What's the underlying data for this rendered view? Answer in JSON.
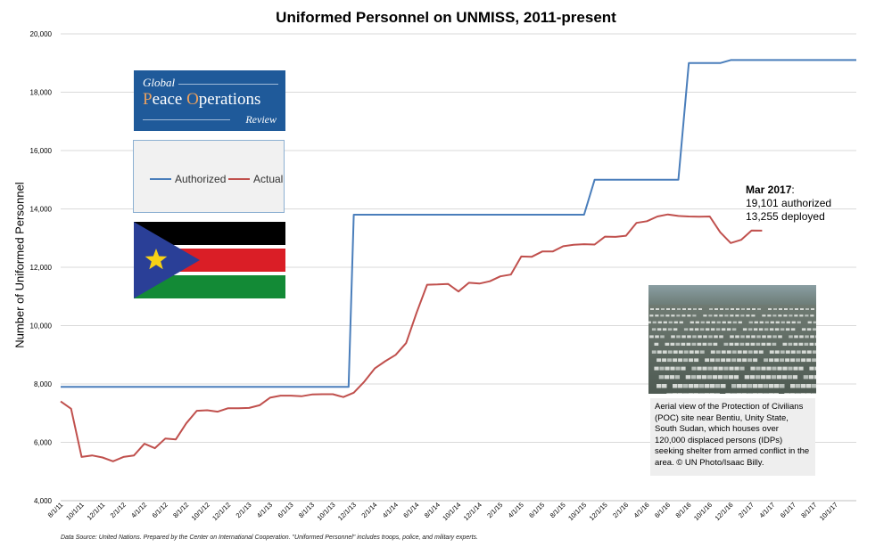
{
  "chart_data": {
    "type": "line",
    "title": "Uniformed Personnel on UNMISS, 2011-present",
    "xlabel": "",
    "ylabel": "Number of Uniformed Personnel",
    "ylim": [
      4000,
      20000
    ],
    "yticks": [
      4000,
      6000,
      8000,
      10000,
      12000,
      14000,
      16000,
      18000,
      20000
    ],
    "ytick_labels": [
      "4,000",
      "6,000",
      "8,000",
      "10,000",
      "12,000",
      "14,000",
      "16,000",
      "18,000",
      "20,000"
    ],
    "xlim": [
      0,
      76
    ],
    "xtick_index": [
      0,
      2,
      4,
      6,
      8,
      10,
      12,
      14,
      16,
      18,
      20,
      22,
      24,
      26,
      28,
      30,
      32,
      34,
      36,
      38,
      40,
      42,
      44,
      46,
      48,
      50,
      52,
      54,
      56,
      58,
      60,
      62,
      64,
      66,
      68,
      70,
      72,
      74
    ],
    "xtick_labels": [
      "8/1/11",
      "10/1/11",
      "12/1/11",
      "2/1/12",
      "4/1/12",
      "6/1/12",
      "8/1/12",
      "10/1/12",
      "12/1/12",
      "2/1/13",
      "4/1/13",
      "6/1/13",
      "8/1/13",
      "10/1/13",
      "12/1/13",
      "2/1/14",
      "4/1/14",
      "6/1/14",
      "8/1/14",
      "10/1/14",
      "12/1/14",
      "2/1/15",
      "4/1/15",
      "6/1/15",
      "8/1/15",
      "10/1/15",
      "12/1/15",
      "2/1/16",
      "4/1/16",
      "6/1/16",
      "8/1/16",
      "10/1/16",
      "12/1/16",
      "2/1/17",
      "4/1/17",
      "6/1/17",
      "8/1/17",
      "10/1/17"
    ],
    "grid": true,
    "legend": "left",
    "series": [
      {
        "name": "Authorized",
        "color": "#4a7ebb",
        "points": [
          [
            0,
            7900
          ],
          [
            27.5,
            7900
          ],
          [
            28,
            13800
          ],
          [
            50,
            13800
          ],
          [
            51,
            15000
          ],
          [
            59,
            15000
          ],
          [
            60,
            19000
          ],
          [
            63,
            19000
          ],
          [
            64,
            19101
          ],
          [
            76,
            19101
          ]
        ]
      },
      {
        "name": "Actual",
        "color": "#c0504d",
        "points": [
          [
            0,
            7400
          ],
          [
            1,
            7150
          ],
          [
            2,
            5500
          ],
          [
            3,
            5550
          ],
          [
            4,
            5480
          ],
          [
            5,
            5350
          ],
          [
            6,
            5500
          ],
          [
            7,
            5550
          ],
          [
            8,
            5950
          ],
          [
            9,
            5800
          ],
          [
            10,
            6130
          ],
          [
            11,
            6100
          ],
          [
            12,
            6650
          ],
          [
            13,
            7080
          ],
          [
            14,
            7100
          ],
          [
            15,
            7050
          ],
          [
            16,
            7170
          ],
          [
            17,
            7170
          ],
          [
            18,
            7180
          ],
          [
            19,
            7270
          ],
          [
            20,
            7530
          ],
          [
            21,
            7600
          ],
          [
            22,
            7600
          ],
          [
            23,
            7580
          ],
          [
            24,
            7640
          ],
          [
            25,
            7650
          ],
          [
            26,
            7650
          ],
          [
            27,
            7550
          ],
          [
            28,
            7700
          ],
          [
            29,
            8080
          ],
          [
            30,
            8530
          ],
          [
            31,
            8780
          ],
          [
            32,
            9000
          ],
          [
            33,
            9400
          ],
          [
            34,
            10450
          ],
          [
            35,
            11400
          ],
          [
            36,
            11410
          ],
          [
            37,
            11430
          ],
          [
            38,
            11170
          ],
          [
            39,
            11470
          ],
          [
            40,
            11440
          ],
          [
            41,
            11520
          ],
          [
            42,
            11690
          ],
          [
            43,
            11750
          ],
          [
            44,
            12370
          ],
          [
            45,
            12360
          ],
          [
            46,
            12540
          ],
          [
            47,
            12540
          ],
          [
            48,
            12720
          ],
          [
            49,
            12770
          ],
          [
            50,
            12790
          ],
          [
            51,
            12780
          ],
          [
            52,
            13050
          ],
          [
            53,
            13040
          ],
          [
            54,
            13080
          ],
          [
            55,
            13520
          ],
          [
            56,
            13580
          ],
          [
            57,
            13740
          ],
          [
            58,
            13810
          ],
          [
            59,
            13760
          ],
          [
            60,
            13740
          ],
          [
            61,
            13730
          ],
          [
            62,
            13740
          ],
          [
            63,
            13200
          ],
          [
            64,
            12830
          ],
          [
            65,
            12940
          ],
          [
            66,
            13260
          ],
          [
            67,
            13255
          ]
        ]
      }
    ],
    "annotation": {
      "heading": "Mar 2017",
      "line1": "19,101 authorized",
      "line2": "13,255 deployed"
    }
  },
  "logo": {
    "line1": "Global",
    "line2_part1": "P",
    "line2_part2": "eace ",
    "line2_part3": "O",
    "line2_part4": "perations",
    "line3": "Review"
  },
  "legend_labels": {
    "authorized": "Authorized",
    "actual": "Actual"
  },
  "caption": "Aerial view of the Protection of Civilians (POC) site near Bentiu, Unity State, South Sudan, which houses over 120,000 displaced persons (IDPs) seeking shelter from armed conflict in the area. © UN Photo/Isaac Billy.",
  "source_note": "Data Source: United Nations. Prepared by the Center on International Cooperation. \"Uniformed Personnel\" includes troops, police, and military experts.",
  "colors": {
    "authorized": "#4a7ebb",
    "actual": "#c0504d",
    "logo_bg": "#1f5a9a",
    "logo_accent": "#e8a060",
    "grid": "#d9d9d9"
  }
}
